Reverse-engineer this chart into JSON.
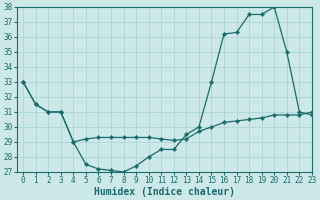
{
  "xlabel": "Humidex (Indice chaleur)",
  "ylabel": "",
  "background_color": "#cde8e8",
  "grid_color": "#b0d8d8",
  "line_color": "#1a6b6b",
  "x": [
    0,
    1,
    2,
    3,
    4,
    5,
    6,
    7,
    8,
    9,
    10,
    11,
    12,
    13,
    14,
    15,
    16,
    17,
    18,
    19,
    20,
    21,
    22,
    23
  ],
  "line1": [
    33,
    31.5,
    31,
    31,
    29,
    27.5,
    27.2,
    27.1,
    27.0,
    27.4,
    28.0,
    28.5,
    28.5,
    29.5,
    30.0,
    33.0,
    36.2,
    36.3,
    37.5,
    37.5,
    38.0,
    35.0,
    31.0,
    30.8
  ],
  "line2": [
    33,
    31.5,
    31,
    31,
    29,
    29.2,
    29.3,
    29.3,
    29.3,
    29.3,
    29.3,
    29.2,
    29.1,
    29.2,
    29.7,
    30.0,
    30.3,
    30.4,
    30.5,
    30.6,
    30.8,
    30.8,
    30.8,
    31.0
  ],
  "ylim": [
    27,
    38
  ],
  "xlim": [
    -0.5,
    23
  ],
  "yticks": [
    27,
    28,
    29,
    30,
    31,
    32,
    33,
    34,
    35,
    36,
    37,
    38
  ],
  "xticks": [
    0,
    1,
    2,
    3,
    4,
    5,
    6,
    7,
    8,
    9,
    10,
    11,
    12,
    13,
    14,
    15,
    16,
    17,
    18,
    19,
    20,
    21,
    22,
    23
  ],
  "tick_fontsize": 5.5,
  "label_fontsize": 7,
  "marker": "D",
  "markersize": 2.2
}
